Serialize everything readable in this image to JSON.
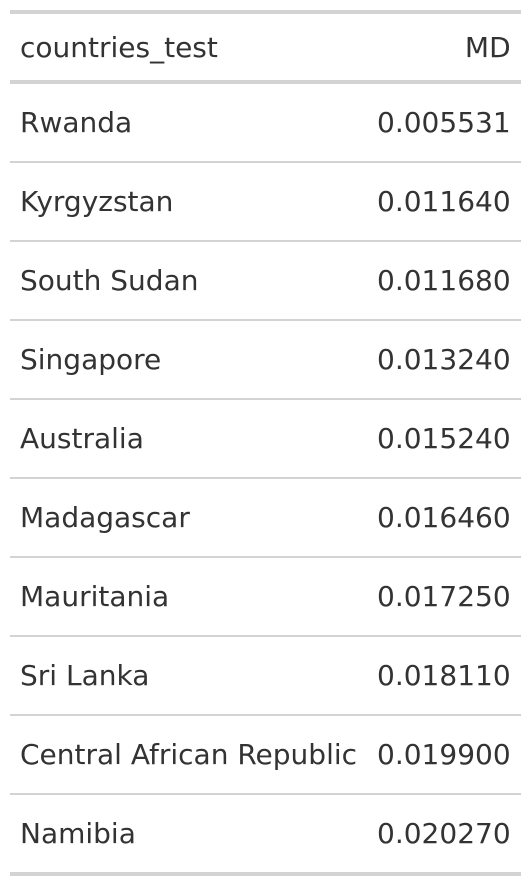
{
  "table": {
    "headers": [
      "countries_test",
      "MD"
    ],
    "rows": [
      {
        "country": "Rwanda",
        "md": "0.005531"
      },
      {
        "country": "Kyrgyzstan",
        "md": "0.011640"
      },
      {
        "country": "South Sudan",
        "md": "0.011680"
      },
      {
        "country": "Singapore",
        "md": "0.013240"
      },
      {
        "country": "Australia",
        "md": "0.015240"
      },
      {
        "country": "Madagascar",
        "md": "0.016460"
      },
      {
        "country": "Mauritania",
        "md": "0.017250"
      },
      {
        "country": "Sri Lanka",
        "md": "0.018110"
      },
      {
        "country": "Central African Republic",
        "md": "0.019900"
      },
      {
        "country": "Namibia",
        "md": "0.020270"
      }
    ]
  }
}
